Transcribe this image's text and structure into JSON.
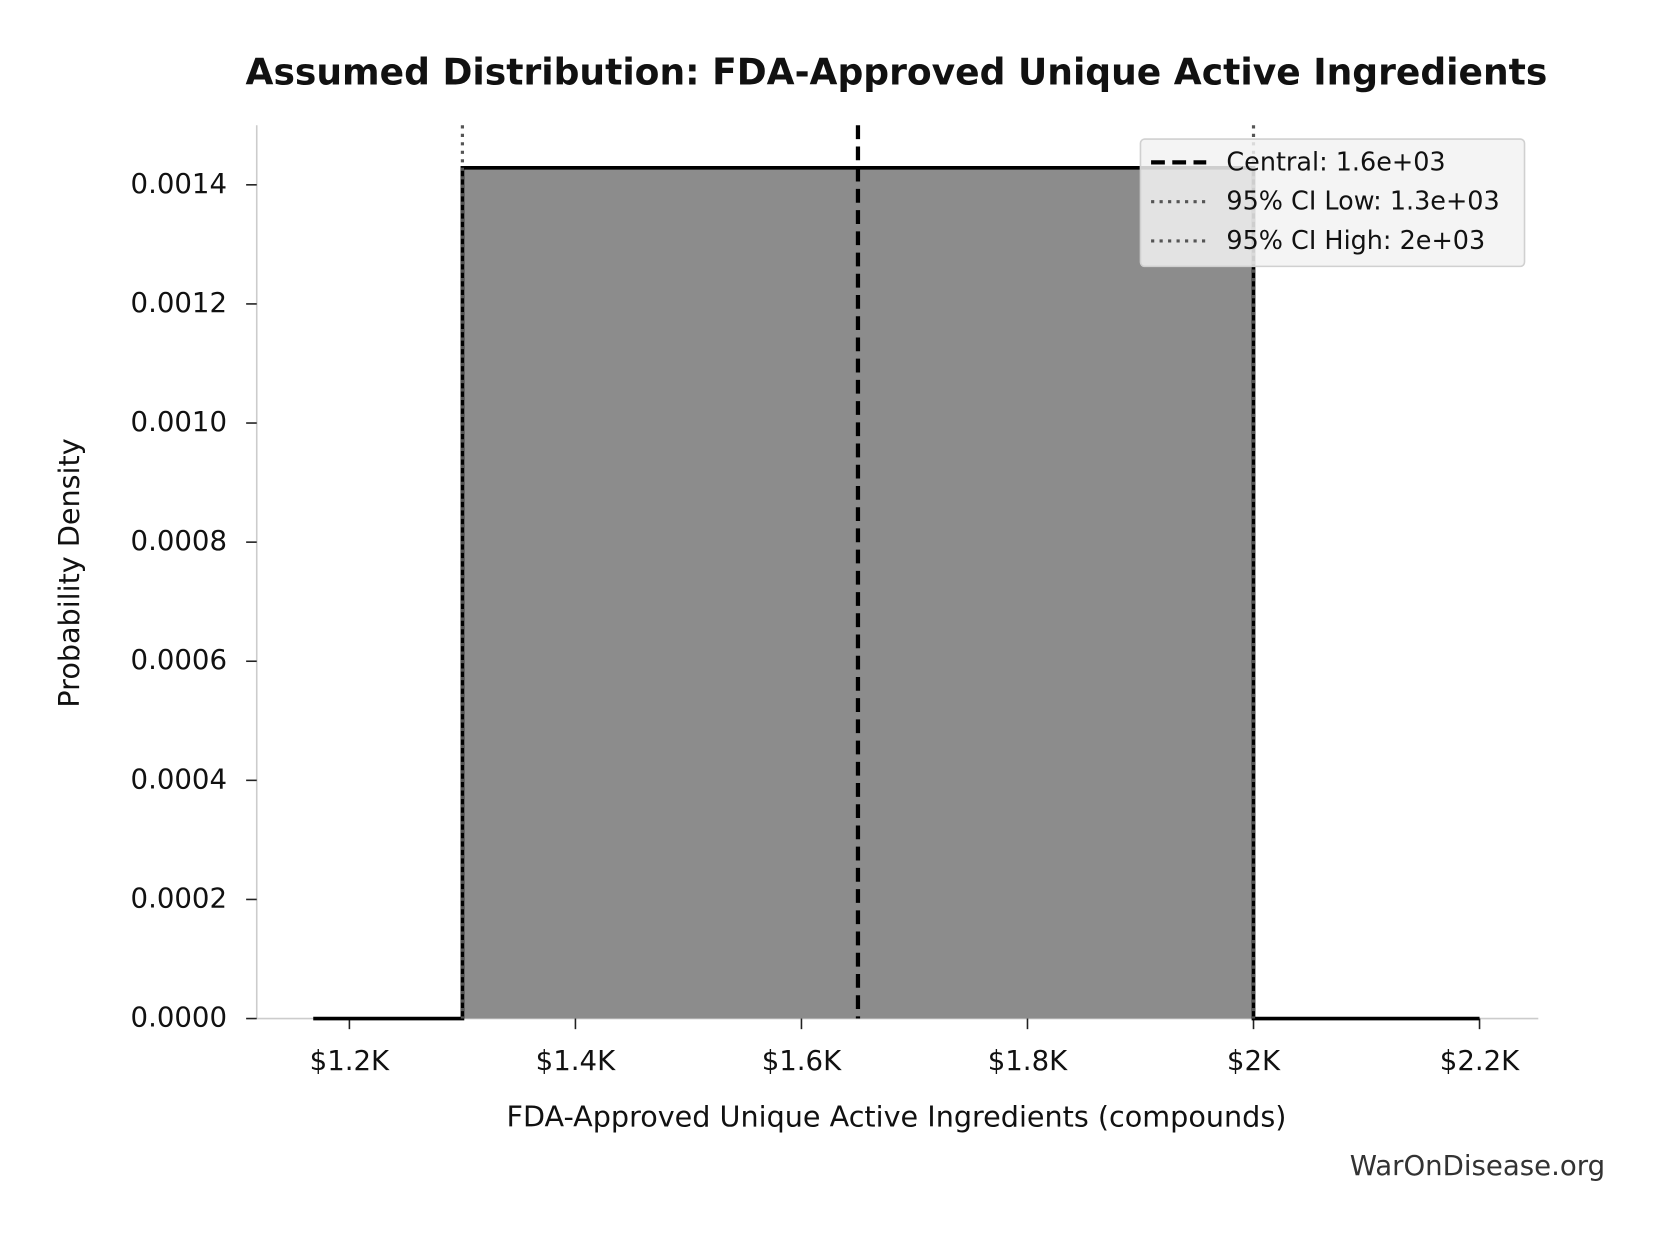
{
  "chart_data": {
    "type": "area",
    "title": "Assumed Distribution: FDA-Approved Unique Active Ingredients",
    "xlabel": "FDA-Approved Unique Active Ingredients (compounds)",
    "ylabel": "Probability Density",
    "watermark": "WarOnDisease.org",
    "x": [
      1168,
      1300,
      1300,
      2000,
      2000,
      2200
    ],
    "values": [
      0,
      0,
      0.001428571,
      0.001428571,
      0,
      0
    ],
    "color": "#8c8c8c",
    "line_color": "#000000",
    "xlim": [
      1118,
      2252
    ],
    "ylim": [
      0,
      0.0015
    ],
    "xticks": [
      {
        "value": 1200,
        "label": "$1.2K"
      },
      {
        "value": 1400,
        "label": "$1.4K"
      },
      {
        "value": 1600,
        "label": "$1.6K"
      },
      {
        "value": 1800,
        "label": "$1.8K"
      },
      {
        "value": 2000,
        "label": "$2K"
      },
      {
        "value": 2200,
        "label": "$2.2K"
      }
    ],
    "yticks": [
      {
        "value": 0,
        "label": "0.0000"
      },
      {
        "value": 0.0002,
        "label": "0.0002"
      },
      {
        "value": 0.0004,
        "label": "0.0004"
      },
      {
        "value": 0.0006,
        "label": "0.0006"
      },
      {
        "value": 0.0008,
        "label": "0.0008"
      },
      {
        "value": 0.001,
        "label": "0.0010"
      },
      {
        "value": 0.0012,
        "label": "0.0012"
      },
      {
        "value": 0.0014,
        "label": "0.0014"
      }
    ],
    "vlines": [
      {
        "name": "Central: 1.6e+03",
        "value": 1650,
        "style": "dashed",
        "color": "#000000"
      },
      {
        "name": "95% CI Low: 1.3e+03",
        "value": 1300,
        "style": "dotted",
        "color": "#555555"
      },
      {
        "name": "95% CI High: 2e+03",
        "value": 2000,
        "style": "dotted",
        "color": "#555555"
      }
    ],
    "legend": "upper right",
    "grid": false
  }
}
